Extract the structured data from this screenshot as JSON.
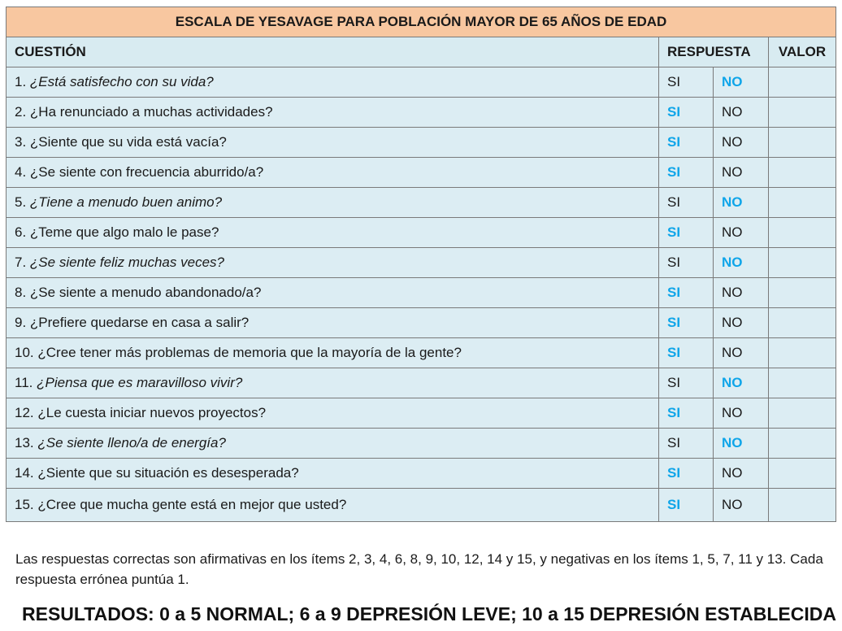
{
  "title": "ESCALA DE YESAVAGE PARA POBLACIÓN MAYOR DE 65 AÑOS DE EDAD",
  "headers": {
    "question": "CUESTIÓN",
    "answer": "RESPUESTA",
    "value": "VALOR"
  },
  "highlight_color": "#0ea5e9",
  "rows": [
    {
      "num": "1.",
      "text": "¿Está satisfecho con su vida?",
      "italic": true,
      "yes": "SI",
      "no": "NO",
      "highlight": "no",
      "value": ""
    },
    {
      "num": "2.",
      "text": "¿Ha renunciado a muchas actividades?",
      "italic": false,
      "yes": "SI",
      "no": "NO",
      "highlight": "yes",
      "value": ""
    },
    {
      "num": "3.",
      "text": "¿Siente que su vida está vacía?",
      "italic": false,
      "yes": "SI",
      "no": "NO",
      "highlight": "yes",
      "value": ""
    },
    {
      "num": "4.",
      "text": "¿Se siente con frecuencia aburrido/a?",
      "italic": false,
      "yes": "SI",
      "no": "NO",
      "highlight": "yes",
      "value": ""
    },
    {
      "num": "5.",
      "text": "¿Tiene a menudo buen animo?",
      "italic": true,
      "yes": "SI",
      "no": "NO",
      "highlight": "no",
      "value": ""
    },
    {
      "num": "6.",
      "text": "¿Teme que algo malo le pase?",
      "italic": false,
      "yes": "SI",
      "no": "NO",
      "highlight": "yes",
      "value": ""
    },
    {
      "num": "7.",
      "text": "¿Se siente feliz muchas veces?",
      "italic": true,
      "yes": "SI",
      "no": "NO",
      "highlight": "no",
      "value": ""
    },
    {
      "num": "8.",
      "text": "¿Se siente a menudo abandonado/a?",
      "italic": false,
      "yes": "SI",
      "no": "NO",
      "highlight": "yes",
      "value": ""
    },
    {
      "num": "9.",
      "text": "¿Prefiere quedarse en casa a salir?",
      "italic": false,
      "yes": "SI",
      "no": "NO",
      "highlight": "yes",
      "value": ""
    },
    {
      "num": "10.",
      "text": "¿Cree tener más problemas de memoria que la mayoría de la gente?",
      "italic": false,
      "yes": "SI",
      "no": "NO",
      "highlight": "yes",
      "value": ""
    },
    {
      "num": "11.",
      "text": "¿Piensa que es maravilloso vivir?",
      "italic": true,
      "yes": "SI",
      "no": "NO",
      "highlight": "no",
      "value": ""
    },
    {
      "num": "12.",
      "text": "¿Le cuesta iniciar nuevos proyectos?",
      "italic": false,
      "yes": "SI",
      "no": "NO",
      "highlight": "yes",
      "value": ""
    },
    {
      "num": "13.",
      "text": "¿Se siente lleno/a de energía?",
      "italic": true,
      "yes": "SI",
      "no": "NO",
      "highlight": "no",
      "value": ""
    },
    {
      "num": "14.",
      "text": "¿Siente que su situación es desesperada?",
      "italic": false,
      "yes": "SI",
      "no": "NO",
      "highlight": "yes",
      "value": ""
    },
    {
      "num": "15.",
      "text": "¿Cree que mucha gente está en mejor que usted?",
      "italic": false,
      "yes": "SI",
      "no": "NO",
      "highlight": "yes",
      "value": ""
    }
  ],
  "notes": "Las respuestas correctas son afirmativas en los ítems 2, 3, 4, 6, 8, 9, 10, 12, 14 y 15, y negativas en los ítems 1, 5, 7, 11 y 13. Cada respuesta errónea puntúa 1.",
  "results": "RESULTADOS: 0 a 5 NORMAL; 6 a 9 DEPRESIÓN LEVE; 10 a 15 DEPRESIÓN ESTABLECIDA"
}
